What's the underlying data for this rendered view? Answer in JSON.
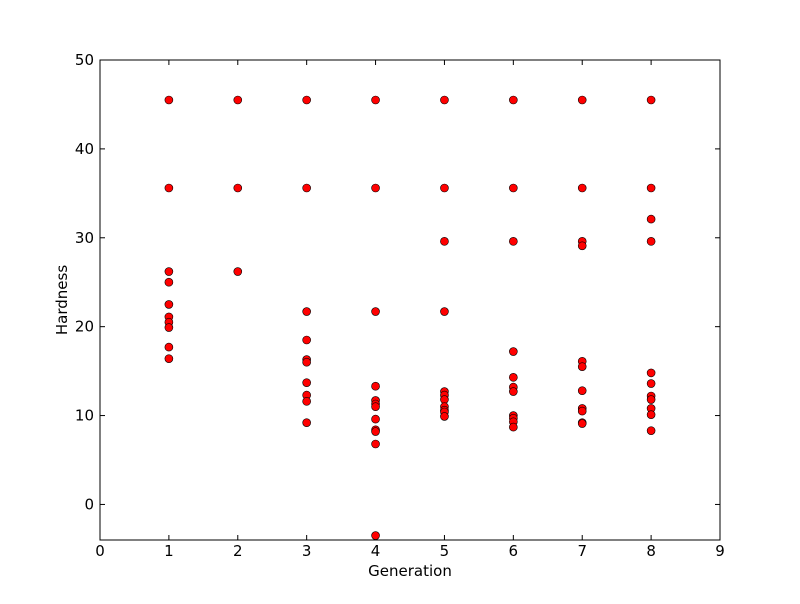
{
  "chart_data": {
    "type": "scatter",
    "xlabel": "Generation",
    "ylabel": "Hardness",
    "xlim": [
      0,
      9
    ],
    "ylim": [
      -4,
      50
    ],
    "xticks": [
      0,
      1,
      2,
      3,
      4,
      5,
      6,
      7,
      8,
      9
    ],
    "yticks": [
      0,
      10,
      20,
      30,
      40,
      50
    ],
    "color": "#ff0000",
    "edgecolor": "#000000",
    "x": [
      1,
      1,
      1,
      1,
      1,
      1,
      1,
      1,
      1,
      1,
      2,
      2,
      2,
      3,
      3,
      3,
      3,
      3,
      3,
      3,
      3,
      3,
      3,
      4,
      4,
      4,
      4,
      4,
      4,
      4,
      4,
      4,
      4,
      4,
      4,
      5,
      5,
      5,
      5,
      5,
      5,
      5,
      5,
      5,
      5,
      5,
      6,
      6,
      6,
      6,
      6,
      6,
      6,
      6,
      6,
      6,
      6,
      7,
      7,
      7,
      7,
      7,
      7,
      7,
      7,
      7,
      7,
      7,
      8,
      8,
      8,
      8,
      8,
      8,
      8,
      8,
      8,
      8,
      8
    ],
    "y": [
      45.5,
      35.6,
      26.2,
      25.0,
      22.5,
      21.1,
      20.5,
      19.9,
      17.7,
      16.4,
      45.5,
      35.6,
      26.2,
      45.5,
      35.6,
      21.7,
      18.5,
      16.3,
      16.0,
      13.7,
      12.3,
      11.6,
      9.2,
      45.5,
      35.6,
      21.7,
      13.3,
      11.7,
      11.3,
      11.0,
      9.6,
      8.4,
      8.2,
      6.8,
      -3.5,
      45.5,
      35.6,
      29.6,
      21.7,
      12.7,
      12.3,
      11.8,
      11.0,
      10.6,
      10.4,
      9.9,
      45.5,
      35.6,
      29.6,
      17.2,
      14.3,
      13.2,
      12.7,
      10.0,
      9.7,
      9.3,
      8.7,
      45.5,
      35.6,
      29.6,
      29.1,
      16.1,
      15.5,
      12.8,
      10.8,
      10.5,
      9.2,
      9.1,
      45.5,
      35.6,
      32.1,
      29.6,
      14.8,
      13.6,
      12.2,
      11.8,
      10.8,
      10.1,
      8.3
    ]
  }
}
